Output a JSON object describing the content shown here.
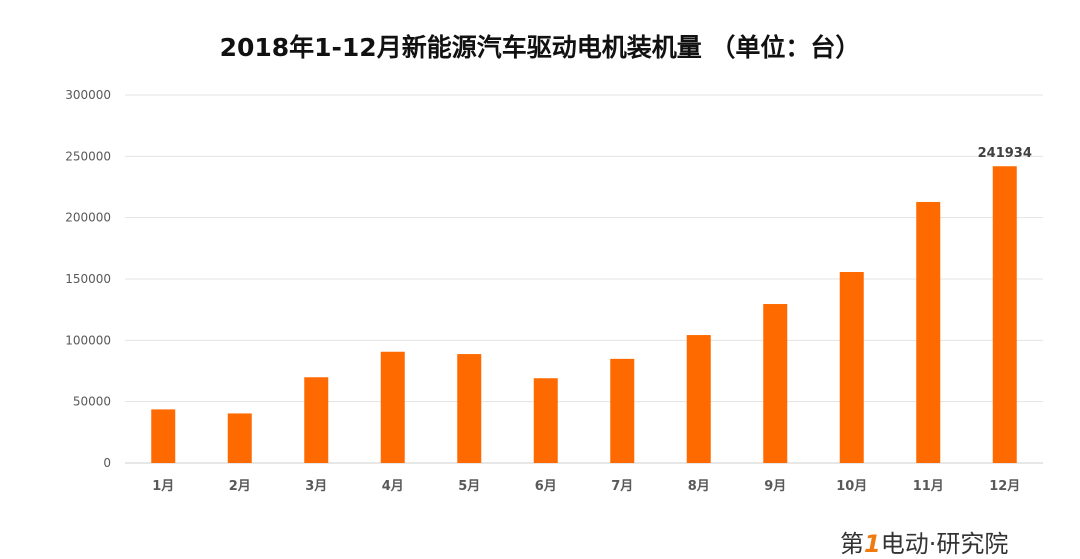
{
  "chart_data": {
    "type": "bar",
    "title": "2018年1-12月新能源汽车驱动电机装机量 （单位：台）",
    "categories": [
      "1月",
      "2月",
      "3月",
      "4月",
      "5月",
      "6月",
      "7月",
      "8月",
      "9月",
      "10月",
      "11月",
      "12月"
    ],
    "values": [
      43700,
      40400,
      69900,
      90700,
      88800,
      69100,
      84900,
      104300,
      129600,
      155700,
      212800,
      241934
    ],
    "data_labels": [
      {
        "category": "12月",
        "text": "241934"
      }
    ],
    "xlabel": "",
    "ylabel": "",
    "ylim": [
      0,
      300000
    ],
    "yticks": [
      "0",
      "50000",
      "100000",
      "150000",
      "200000",
      "250000",
      "300000"
    ],
    "grid": true,
    "legend": "none",
    "bar_color": "#ff6a00"
  },
  "watermark": {
    "text": "第1电动·研究院",
    "part1": "第",
    "part2": "1",
    "part3": "电动·研究院"
  }
}
